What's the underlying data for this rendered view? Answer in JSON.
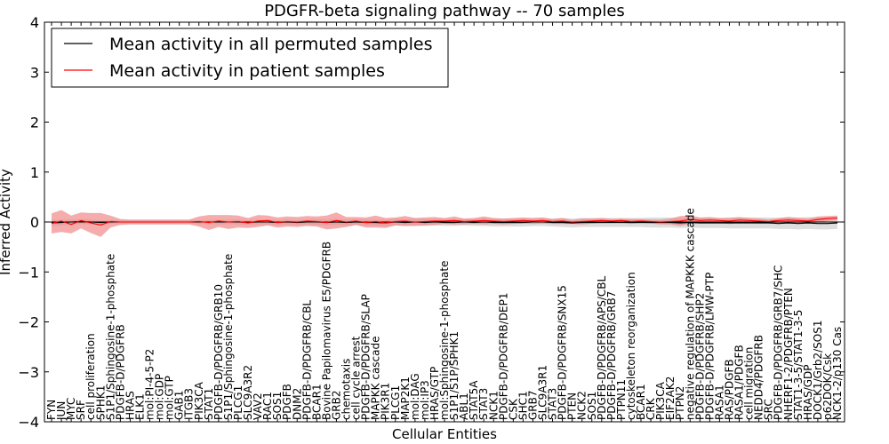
{
  "chart_data": {
    "type": "line",
    "title": "PDGFR-beta signaling pathway -- 70 samples",
    "xlabel": "Cellular Entities",
    "ylabel": "Inferred Activity",
    "ylim": [
      -4,
      4
    ],
    "yticks": [
      -4,
      -3,
      -2,
      -1,
      0,
      1,
      2,
      3,
      4
    ],
    "ytick_labels": [
      "−4",
      "−3",
      "−2",
      "−1",
      "0",
      "1",
      "2",
      "3",
      "4"
    ],
    "legend_position": "top-left",
    "categories": [
      "FYN",
      "JUN",
      "MYC",
      "SRF",
      "cell proliferation",
      "SPHK1",
      "S1P1/Sphingosine-1-phosphate",
      "PDGFB-D/PDGFRB",
      "HRAS",
      "ELK1",
      "mol:PI-4-5-P2",
      "mol:GDP",
      "mol:GTP",
      "GAB1",
      "ITGB3",
      "PIK3CA",
      "STAT1",
      "PDGFB-D/PDGFRB/GRB10",
      "S1P1/Sphingosine-1-phosphate",
      "PLCG1",
      "SLC9A3R2",
      "VAV2",
      "RAC1",
      "SOS1",
      "PDGFB",
      "DNM2",
      "PDGFB-D/PDGFRB/CBL",
      "BCAR1",
      "Bovine Papilomavirus E5/PDGFRB",
      "GRB2",
      "chemotaxis",
      "cell cycle arrest",
      "PDGFB-D/PDGFRB/SLAP",
      "MAPKK cascade",
      "PIK3R1",
      "PLCG1",
      "MAP2K1",
      "mol:DAG",
      "mol:IP3",
      "HRAS/GTP",
      "mol:Sphingosine-1-phosphate",
      "S1P1/S1P/SPHK1",
      "ABL1",
      "STAT5A",
      "STAT3",
      "NCK1",
      "PDGFB-D/PDGFRB/DEP1",
      "CSK",
      "SHC1",
      "GRB7",
      "SLC9A3R1",
      "STAT3",
      "PDGFB-D/PDGFRB/SNX15",
      "PTEN",
      "NCK2",
      "SOS1",
      "PDGFB-D/PDGFRB/APS/CBL",
      "PDGFB-D/PDGFRB/GRB7",
      "PTPN11",
      "cytoskeleton reorganization",
      "BCAR1",
      "CRK",
      "PIK3CA",
      "EIF2AK2",
      "PTPN2",
      "negative regulation of MAPKKK cascade",
      "PDGFB-D/PDGFRB/SHP2",
      "PDGFB-D/PDGFRB/LMW-PTP",
      "RASA1",
      "RAS/PDGFB",
      "RASA1/PDGFB",
      "cell migration",
      "NEDD4/PDGFRB",
      "SRC",
      "PDGFB-D/PDGFRB/GRB7/SHC",
      "NHERF1-2/PDGFRB/PTEN",
      "STAT1-3-5/STAT1-3-5",
      "HRAS/GDP",
      "DOCK1/Grb2/SOS1",
      "p62DOK/Csk",
      "NCK1-2/p130 Cas"
    ],
    "series": [
      {
        "name": "Mean activity in all permuted samples",
        "color": "#000000",
        "band_color": "#c8c8c8",
        "values": [
          -0.02,
          -0.01,
          0.0,
          0.01,
          0.0,
          -0.01,
          0.0,
          0.0,
          0.0,
          0.0,
          0.0,
          0.0,
          0.0,
          0.0,
          0.0,
          0.0,
          0.0,
          0.0,
          0.0,
          0.0,
          -0.01,
          0.0,
          0.0,
          -0.01,
          0.0,
          -0.01,
          0.0,
          0.0,
          -0.01,
          0.0,
          -0.01,
          0.0,
          -0.01,
          -0.01,
          -0.02,
          0.0,
          -0.01,
          0.0,
          -0.01,
          0.0,
          -0.01,
          -0.01,
          0.0,
          -0.01,
          0.0,
          -0.01,
          -0.01,
          -0.01,
          -0.01,
          0.0,
          0.0,
          -0.01,
          -0.01,
          -0.02,
          -0.01,
          -0.01,
          -0.01,
          -0.01,
          -0.01,
          -0.01,
          -0.01,
          -0.01,
          -0.01,
          -0.01,
          -0.02,
          -0.01,
          -0.02,
          -0.02,
          -0.02,
          -0.02,
          -0.02,
          -0.02,
          -0.02,
          -0.02,
          -0.03,
          -0.02,
          -0.03,
          -0.02,
          -0.03,
          -0.03,
          -0.02
        ],
        "band": [
          0.06,
          0.06,
          0.05,
          0.05,
          0.05,
          0.04,
          0.04,
          0.04,
          0.04,
          0.04,
          0.04,
          0.04,
          0.04,
          0.04,
          0.04,
          0.04,
          0.04,
          0.05,
          0.05,
          0.05,
          0.05,
          0.05,
          0.05,
          0.05,
          0.05,
          0.05,
          0.05,
          0.06,
          0.06,
          0.06,
          0.06,
          0.06,
          0.06,
          0.06,
          0.07,
          0.07,
          0.07,
          0.07,
          0.07,
          0.07,
          0.07,
          0.07,
          0.07,
          0.07,
          0.08,
          0.08,
          0.08,
          0.08,
          0.08,
          0.08,
          0.08,
          0.08,
          0.09,
          0.09,
          0.09,
          0.09,
          0.09,
          0.09,
          0.09,
          0.09,
          0.09,
          0.1,
          0.1,
          0.1,
          0.1,
          0.1,
          0.1,
          0.1,
          0.1,
          0.11,
          0.11,
          0.11,
          0.11,
          0.11,
          0.11,
          0.12,
          0.12,
          0.12,
          0.12,
          0.12,
          0.12
        ]
      },
      {
        "name": "Mean activity in patient samples",
        "color": "#ff0000",
        "band_color": "#f08080",
        "values": [
          -0.03,
          0.02,
          -0.05,
          0.03,
          -0.02,
          -0.06,
          0.01,
          0.0,
          0.0,
          0.0,
          0.0,
          0.0,
          0.0,
          0.0,
          0.0,
          0.01,
          -0.01,
          0.02,
          0.0,
          0.01,
          -0.02,
          0.02,
          0.03,
          -0.01,
          0.01,
          0.0,
          0.02,
          0.01,
          -0.01,
          0.03,
          0.0,
          0.02,
          -0.01,
          0.01,
          -0.02,
          0.01,
          0.02,
          0.0,
          0.01,
          0.02,
          0.02,
          0.03,
          0.01,
          0.02,
          0.03,
          0.02,
          0.01,
          0.02,
          0.03,
          0.02,
          0.03,
          0.01,
          0.02,
          0.0,
          0.01,
          0.02,
          0.03,
          0.02,
          0.03,
          0.01,
          0.02,
          0.01,
          0.0,
          0.01,
          0.02,
          0.05,
          0.03,
          0.04,
          0.03,
          0.02,
          0.04,
          0.03,
          0.02,
          0.01,
          0.03,
          0.04,
          0.03,
          0.02,
          0.05,
          0.07,
          0.08
        ],
        "band": [
          0.2,
          0.22,
          0.18,
          0.16,
          0.2,
          0.24,
          0.12,
          0.06,
          0.05,
          0.05,
          0.05,
          0.05,
          0.05,
          0.05,
          0.05,
          0.1,
          0.15,
          0.12,
          0.14,
          0.12,
          0.1,
          0.12,
          0.1,
          0.1,
          0.1,
          0.1,
          0.1,
          0.1,
          0.14,
          0.16,
          0.1,
          0.08,
          0.1,
          0.12,
          0.1,
          0.08,
          0.1,
          0.08,
          0.08,
          0.08,
          0.06,
          0.08,
          0.06,
          0.06,
          0.08,
          0.06,
          0.06,
          0.06,
          0.06,
          0.06,
          0.06,
          0.05,
          0.06,
          0.04,
          0.06,
          0.05,
          0.05,
          0.04,
          0.04,
          0.05,
          0.04,
          0.04,
          0.05,
          0.06,
          0.1,
          0.08,
          0.06,
          0.06,
          0.05,
          0.06,
          0.06,
          0.05,
          0.05,
          0.04,
          0.05,
          0.06,
          0.05,
          0.05,
          0.06,
          0.05,
          0.05
        ]
      }
    ]
  }
}
